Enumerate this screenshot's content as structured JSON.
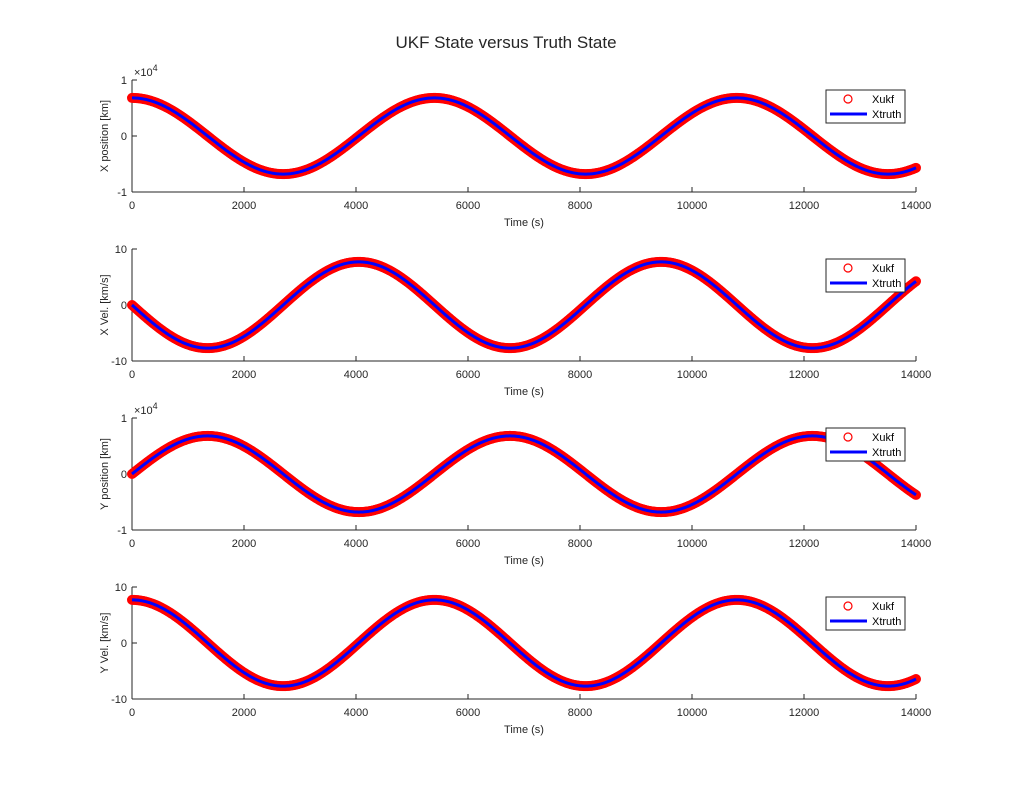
{
  "figure": {
    "title": "UKF State versus Truth State"
  },
  "chart_data": [
    {
      "type": "line",
      "id": "x-position",
      "title": "",
      "xlabel": "Time (s)",
      "ylabel": "X position [km]",
      "xlim": [
        0,
        14000
      ],
      "ylim": [
        -1,
        1
      ],
      "y_exponent_label": "×10",
      "y_exponent_power": "4",
      "xticks": [
        0,
        2000,
        4000,
        6000,
        8000,
        10000,
        12000,
        14000
      ],
      "yticks": [
        -1,
        0,
        1
      ],
      "legend": {
        "position": "top-right",
        "entries": [
          "Xukf",
          "Xtruth"
        ]
      },
      "curve": {
        "amplitude": 0.68,
        "period": 5400,
        "phase": 0,
        "func": "cos"
      },
      "series": [
        {
          "name": "Xukf",
          "style": "markers",
          "color": "#ff0000",
          "x": [
            0,
            1000,
            2000,
            2700,
            4000,
            5400,
            7000,
            8100,
            9500,
            10800,
            12000,
            13500,
            14000
          ],
          "y": [
            0.68,
            0.27,
            -0.4,
            -0.68,
            -0.36,
            0.68,
            -0.06,
            -0.68,
            0.26,
            0.68,
            0.06,
            -0.68,
            -0.57
          ]
        },
        {
          "name": "Xtruth",
          "style": "line",
          "color": "#0000ff",
          "x": [
            0,
            1000,
            2000,
            2700,
            4000,
            5400,
            7000,
            8100,
            9500,
            10800,
            12000,
            13500,
            14000
          ],
          "y": [
            0.68,
            0.27,
            -0.4,
            -0.68,
            -0.36,
            0.68,
            -0.06,
            -0.68,
            0.26,
            0.68,
            0.06,
            -0.68,
            -0.57
          ]
        }
      ]
    },
    {
      "type": "line",
      "id": "x-velocity",
      "title": "",
      "xlabel": "Time (s)",
      "ylabel": "X Vel. [km/s]",
      "xlim": [
        0,
        14000
      ],
      "ylim": [
        -10,
        10
      ],
      "xticks": [
        0,
        2000,
        4000,
        6000,
        8000,
        10000,
        12000,
        14000
      ],
      "yticks": [
        -10,
        0,
        10
      ],
      "legend": {
        "position": "top-right",
        "entries": [
          "Xukf",
          "Xtruth"
        ]
      },
      "curve": {
        "amplitude": 7.7,
        "period": 5400,
        "phase": 0,
        "func": "-sin"
      },
      "series": [
        {
          "name": "Xukf",
          "style": "markers",
          "color": "#ff0000",
          "x": [
            0,
            1350,
            2700,
            4050,
            5400,
            6750,
            8100,
            9450,
            10800,
            12150,
            13500,
            14000
          ],
          "y": [
            0,
            -7.7,
            0,
            7.7,
            0,
            -7.7,
            0,
            7.7,
            0,
            -7.7,
            0,
            4.0
          ]
        },
        {
          "name": "Xtruth",
          "style": "line",
          "color": "#0000ff",
          "x": [
            0,
            1350,
            2700,
            4050,
            5400,
            6750,
            8100,
            9450,
            10800,
            12150,
            13500,
            14000
          ],
          "y": [
            0,
            -7.7,
            0,
            7.7,
            0,
            -7.7,
            0,
            7.7,
            0,
            -7.7,
            0,
            4.0
          ]
        }
      ]
    },
    {
      "type": "line",
      "id": "y-position",
      "title": "",
      "xlabel": "Time (s)",
      "ylabel": "Y position [km]",
      "xlim": [
        0,
        14000
      ],
      "ylim": [
        -1,
        1
      ],
      "y_exponent_label": "×10",
      "y_exponent_power": "4",
      "xticks": [
        0,
        2000,
        4000,
        6000,
        8000,
        10000,
        12000,
        14000
      ],
      "yticks": [
        -1,
        0,
        1
      ],
      "legend": {
        "position": "top-right",
        "entries": [
          "Xukf",
          "Xtruth"
        ]
      },
      "curve": {
        "amplitude": 0.68,
        "period": 5400,
        "phase": 0,
        "func": "sin"
      },
      "series": [
        {
          "name": "Xukf",
          "style": "markers",
          "color": "#ff0000",
          "x": [
            0,
            1350,
            2700,
            4050,
            5400,
            6750,
            8100,
            9450,
            10800,
            12150,
            13500,
            14000
          ],
          "y": [
            0,
            0.68,
            0,
            -0.68,
            0,
            0.68,
            0,
            -0.68,
            0,
            0.68,
            0,
            -0.33
          ]
        },
        {
          "name": "Xtruth",
          "style": "line",
          "color": "#0000ff",
          "x": [
            0,
            1350,
            2700,
            4050,
            5400,
            6750,
            8100,
            9450,
            10800,
            12150,
            13500,
            14000
          ],
          "y": [
            0,
            0.68,
            0,
            -0.68,
            0,
            0.68,
            0,
            -0.68,
            0,
            0.68,
            0,
            -0.33
          ]
        }
      ]
    },
    {
      "type": "line",
      "id": "y-velocity",
      "title": "",
      "xlabel": "Time (s)",
      "ylabel": "Y Vel. [km/s]",
      "xlim": [
        0,
        14000
      ],
      "ylim": [
        -10,
        10
      ],
      "xticks": [
        0,
        2000,
        4000,
        6000,
        8000,
        10000,
        12000,
        14000
      ],
      "yticks": [
        -10,
        0,
        10
      ],
      "legend": {
        "position": "top-right",
        "entries": [
          "Xukf",
          "Xtruth"
        ]
      },
      "curve": {
        "amplitude": 7.7,
        "period": 5400,
        "phase": 0,
        "func": "cos"
      },
      "series": [
        {
          "name": "Xukf",
          "style": "markers",
          "color": "#ff0000",
          "x": [
            0,
            1000,
            2000,
            2700,
            4000,
            5400,
            7000,
            8100,
            9500,
            10800,
            12000,
            13500,
            14000
          ],
          "y": [
            7.7,
            3.1,
            -4.5,
            -7.7,
            -4.1,
            7.7,
            -0.7,
            -7.7,
            2.9,
            7.7,
            0.7,
            -7.7,
            -6.5
          ]
        },
        {
          "name": "Xtruth",
          "style": "line",
          "color": "#0000ff",
          "x": [
            0,
            1000,
            2000,
            2700,
            4000,
            5400,
            7000,
            8100,
            9500,
            10800,
            12000,
            13500,
            14000
          ],
          "y": [
            7.7,
            3.1,
            -4.5,
            -7.7,
            -4.1,
            7.7,
            -0.7,
            -7.7,
            2.9,
            7.7,
            0.7,
            -7.7,
            -6.5
          ]
        }
      ]
    }
  ]
}
